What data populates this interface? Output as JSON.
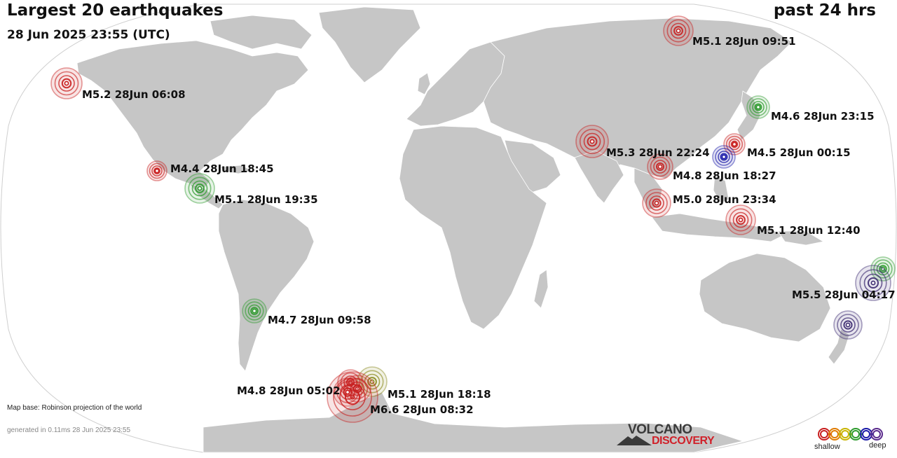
{
  "header": {
    "title": "Largest 20 earthquakes",
    "datetime": "28 Jun 2025 23:55 (UTC)",
    "period": "past 24 hrs"
  },
  "footer": {
    "map_base": "Map base: Robinson projection of the world",
    "generated": "generated in 0.11ms 28 Jun 2025 23:55"
  },
  "logo": {
    "line1": "VOLCANO",
    "line2": "DISCOVERY"
  },
  "legend": {
    "shallow_label": "shallow",
    "deep_label": "deep",
    "depth_colors": [
      "#c81e1e",
      "#e07b00",
      "#c8b400",
      "#2e9b2e",
      "#1a1aa8",
      "#5a2a8c"
    ]
  },
  "colors": {
    "land": "#c6c6c6",
    "ocean": "#ffffff",
    "shallow": "#c81e1e",
    "intermediate": "#8a8a1e",
    "medium_deep": "#2e9b2e",
    "deep": "#1a1aa8",
    "very_deep": "#3c2a70"
  },
  "earthquakes": [
    {
      "label": "M5.1 28Jun 09:51",
      "color": "#c81e1e",
      "magnitude": 5.1
    },
    {
      "label": "M5.2 28Jun 06:08",
      "color": "#c81e1e",
      "magnitude": 5.2
    },
    {
      "label": "M4.6 28Jun 23:15",
      "color": "#2e9b2e",
      "magnitude": 4.6
    },
    {
      "label": "M5.3 28Jun 22:24",
      "color": "#c81e1e",
      "magnitude": 5.3
    },
    {
      "label": "M4.5 28Jun 00:15",
      "color": "#c81e1e",
      "magnitude": 4.5
    },
    {
      "label": "",
      "color": "#1a1aa8",
      "magnitude": 4.6
    },
    {
      "label": "M4.8 28Jun 18:27",
      "color": "#c81e1e",
      "magnitude": 4.8
    },
    {
      "label": "M4.4 28Jun 18:45",
      "color": "#c81e1e",
      "magnitude": 4.4
    },
    {
      "label": "M5.1 28Jun 19:35",
      "color": "#2e9b2e",
      "magnitude": 5.1
    },
    {
      "label": "M5.0 28Jun 23:34",
      "color": "#c81e1e",
      "magnitude": 5.0
    },
    {
      "label": "M5.1 28Jun 12:40",
      "color": "#c81e1e",
      "magnitude": 5.1
    },
    {
      "label": "",
      "color": "#2e9b2e",
      "magnitude": 4.7
    },
    {
      "label": "M5.5 28Jun 04:17",
      "color": "#3c2a70",
      "magnitude": 5.5
    },
    {
      "label": "",
      "color": "#3c2a70",
      "magnitude": 5.0
    },
    {
      "label": "M4.7 28Jun 09:58",
      "color": "#2e9b2e",
      "magnitude": 4.7
    },
    {
      "label": "M4.8 28Jun 05:02",
      "color": "#c81e1e",
      "magnitude": 4.8
    },
    {
      "label": "M5.1 28Jun 18:18",
      "color": "#8a8a1e",
      "magnitude": 5.1
    },
    {
      "label": "M6.6 28Jun 08:32",
      "color": "#c81e1e",
      "magnitude": 6.6
    },
    {
      "label": "",
      "color": "#c81e1e",
      "magnitude": 4.9
    },
    {
      "label": "",
      "color": "#c81e1e",
      "magnitude": 5.0
    }
  ]
}
